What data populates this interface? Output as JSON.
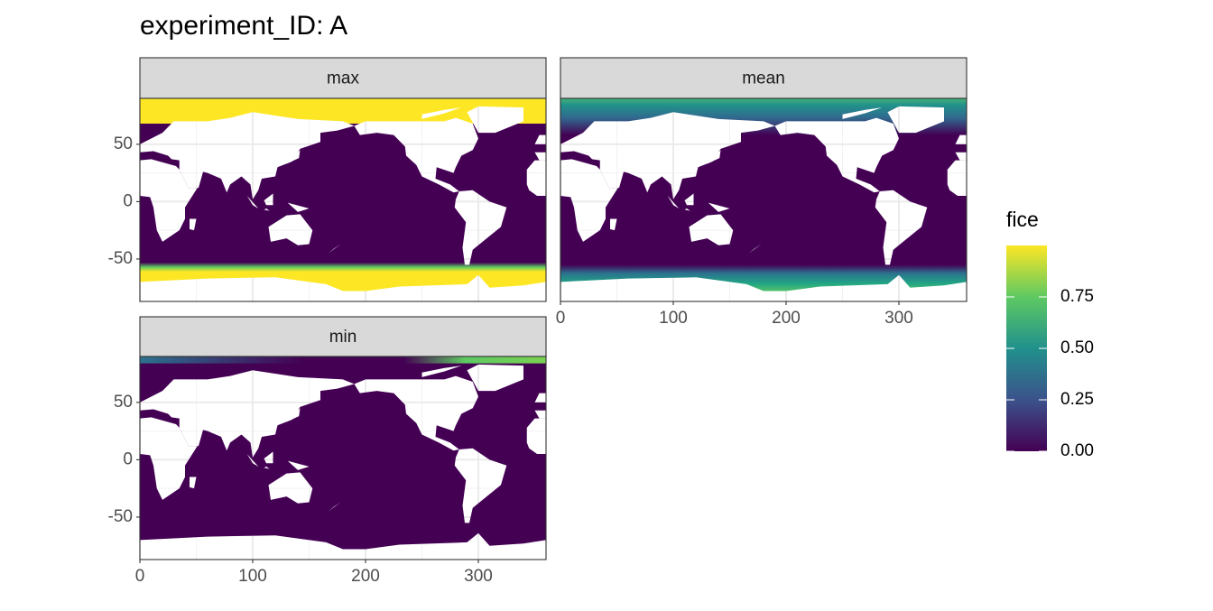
{
  "chart_data": {
    "type": "raster",
    "title": "experiment_ID: A",
    "panels": [
      "max",
      "mean",
      "min"
    ],
    "xlim": [
      0,
      360
    ],
    "ylim": [
      -87,
      90
    ],
    "xticks": [
      0,
      100,
      200,
      300
    ],
    "yticks": [
      -50,
      0,
      50
    ],
    "grid": true,
    "legend": {
      "title": "fice",
      "limits": [
        0,
        1
      ],
      "ticks": [
        {
          "value": 0,
          "label": "0.00"
        },
        {
          "value": 0.25,
          "label": "0.25"
        },
        {
          "value": 0.5,
          "label": "0.50"
        },
        {
          "value": 0.75,
          "label": "0.75"
        }
      ],
      "colors": [
        "#440154",
        "#3b528b",
        "#21918c",
        "#5ec962",
        "#fde725"
      ]
    }
  }
}
